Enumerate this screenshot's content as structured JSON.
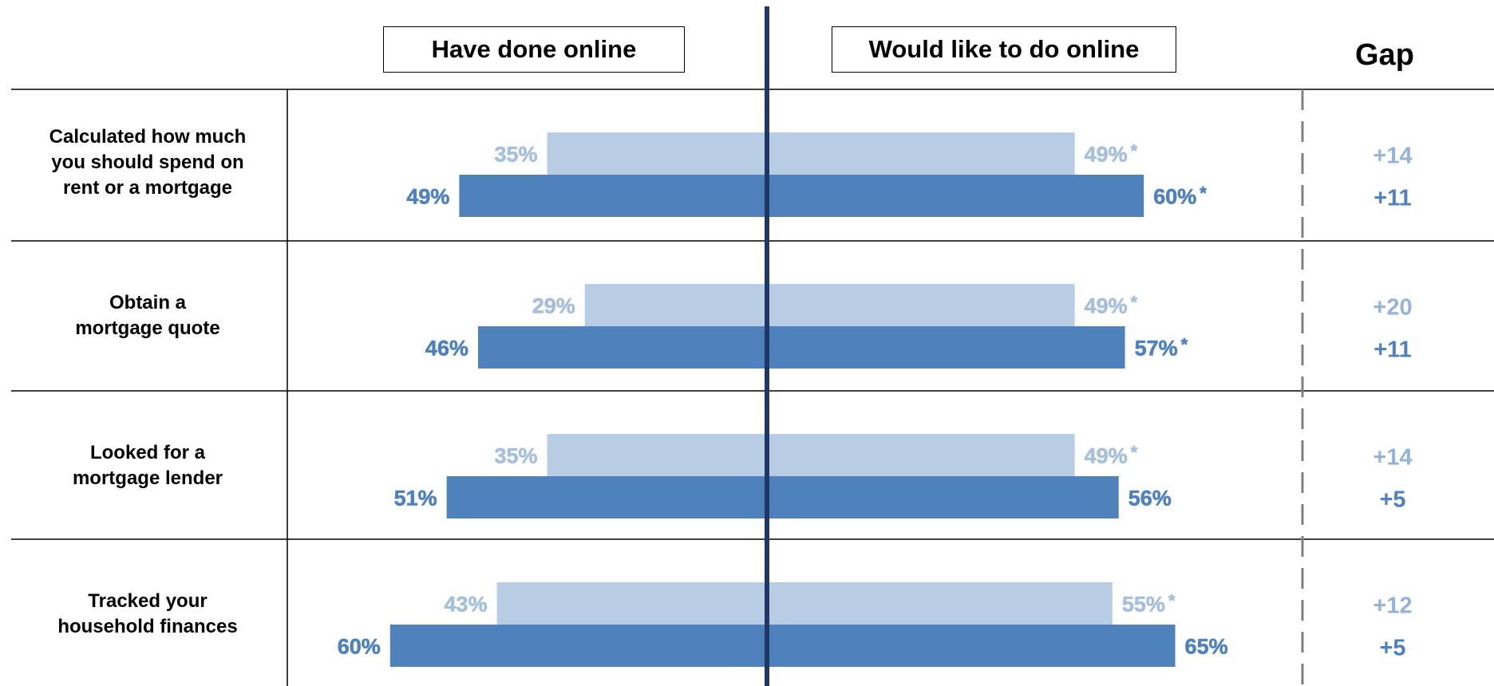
{
  "headers": {
    "left": "Have done online",
    "right": "Would like to do online",
    "gap": "Gap"
  },
  "chart_data": {
    "type": "bar",
    "orientation": "horizontal-butterfly",
    "xlim": [
      0,
      70
    ],
    "categories": [
      [
        "Calculated how much",
        "you should spend on",
        "rent or a mortgage"
      ],
      [
        "Obtain a",
        "mortgage quote"
      ],
      [
        "Looked for a",
        "mortgage lender"
      ],
      [
        "Tracked your",
        "household finances"
      ]
    ],
    "series": [
      {
        "color": "#b8cce4",
        "have_done": [
          35,
          29,
          35,
          43
        ],
        "have_done_labels": [
          "35%",
          "29%",
          "35%",
          "43%"
        ],
        "would_like": [
          49,
          49,
          49,
          55
        ],
        "would_like_labels": [
          "49%",
          "49%",
          "49%",
          "55%"
        ],
        "would_like_flags": [
          "*",
          "*",
          "*",
          "*"
        ],
        "gap_labels": [
          "+14",
          "+20",
          "+14",
          "+12"
        ]
      },
      {
        "color": "#4f81bd",
        "have_done": [
          49,
          46,
          51,
          60
        ],
        "have_done_labels": [
          "49%",
          "46%",
          "51%",
          "60%"
        ],
        "would_like": [
          60,
          57,
          56,
          65
        ],
        "would_like_labels": [
          "60%",
          "57%",
          "56%",
          "65%"
        ],
        "would_like_flags": [
          "*",
          "*",
          "",
          ""
        ],
        "gap_labels": [
          "+11",
          "+11",
          "+5",
          "+5"
        ]
      }
    ],
    "colors": {
      "axis": "#1f3864",
      "gap_light": "#95b3d7",
      "gap_dark": "#4f81bd",
      "label_light": "#a6bfdd",
      "label_dark": "#4f81bd"
    }
  }
}
